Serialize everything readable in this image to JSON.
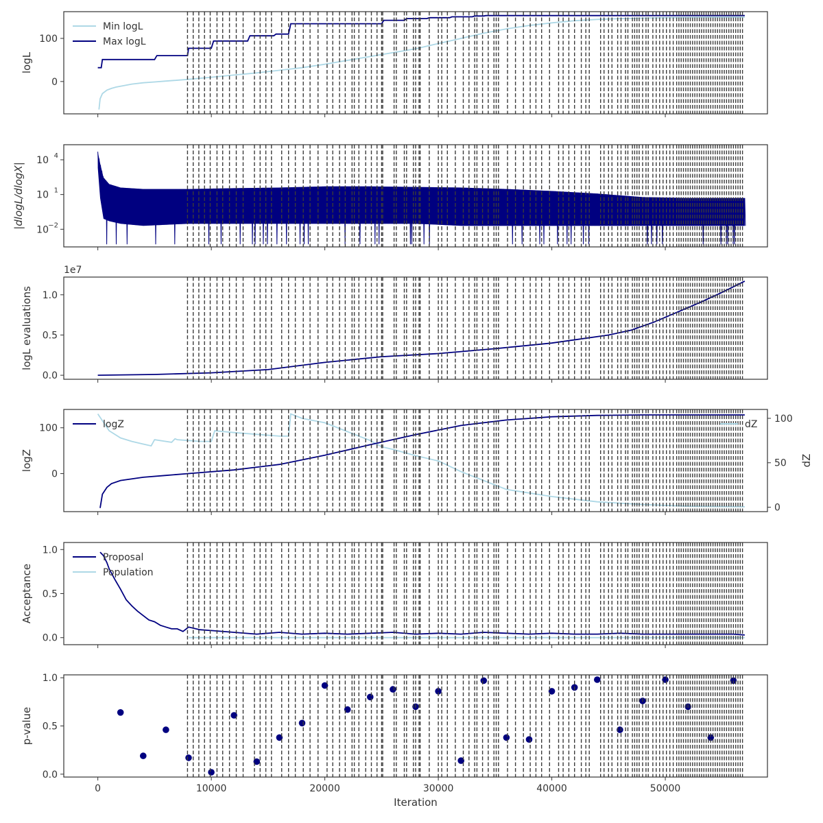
{
  "colors": {
    "dark": "#000080",
    "light": "#add8e6",
    "vline": "#3a3a3a",
    "axis": "#333333"
  },
  "chart_data": [
    {
      "panel": "logL",
      "type": "line",
      "ylabel": "logL",
      "xlim": [
        -3000,
        59000
      ],
      "ylim": [
        -75,
        162
      ],
      "yticks": [
        0,
        100
      ],
      "legend": "top-left",
      "series": [
        {
          "name": "Min logL",
          "color": "light",
          "x": [
            100,
            200,
            400,
            800,
            1200,
            1600,
            2000,
            3000,
            4000,
            5000,
            6000,
            8000,
            10000,
            12000,
            14000,
            16000,
            18000,
            20000,
            22000,
            24000,
            26000,
            28000,
            30000,
            32000,
            34000,
            36000,
            38000,
            40000,
            42000,
            44000,
            46000,
            48000,
            50000,
            52000,
            54000,
            56000,
            57000
          ],
          "y": [
            -65,
            -40,
            -28,
            -20,
            -16,
            -13,
            -11,
            -6,
            -3,
            -1,
            1,
            5,
            10,
            15,
            20,
            26,
            32,
            40,
            49,
            58,
            67,
            76,
            88,
            100,
            112,
            122,
            130,
            136,
            141,
            144,
            146,
            147,
            148,
            148.5,
            149,
            149,
            149
          ]
        },
        {
          "name": "Max logL",
          "color": "dark",
          "step": true,
          "x": [
            0,
            300,
            400,
            5000,
            5200,
            7900,
            8000,
            10000,
            10200,
            13200,
            13400,
            15500,
            15700,
            16800,
            17000,
            25000,
            25200,
            27000,
            27200,
            29000,
            29200,
            31000,
            31200,
            33000,
            33200,
            34000,
            34200,
            57000
          ],
          "y": [
            32,
            32,
            51,
            51,
            60,
            60,
            77,
            77,
            94,
            94,
            106,
            106,
            110,
            110,
            134,
            134,
            142,
            142,
            146,
            146,
            148,
            148,
            150,
            150,
            152,
            152,
            153,
            153
          ]
        }
      ]
    },
    {
      "panel": "dlogL",
      "type": "line",
      "yscale": "log",
      "ylabel": "|dlogL/dlogX|",
      "xlim": [
        -3000,
        59000
      ],
      "ylim": [
        0.0003,
        200000
      ],
      "yticks": [
        0.01,
        10,
        10000
      ],
      "ytick_labels": [
        "10",
        "10",
        "10"
      ],
      "ytick_exponents": [
        "−2",
        "1",
        "4"
      ],
      "envelope": {
        "x": [
          0,
          200,
          500,
          1000,
          2000,
          4000,
          8000,
          12000,
          16000,
          20000,
          24000,
          28000,
          32000,
          36000,
          40000,
          44000,
          48000,
          52000,
          56000,
          57000
        ],
        "upper": [
          50000,
          5000,
          300,
          80,
          40,
          30,
          30,
          35,
          40,
          50,
          50,
          45,
          40,
          30,
          20,
          12,
          6,
          5,
          5,
          5
        ],
        "lower": [
          2000,
          5,
          0.08,
          0.05,
          0.03,
          0.02,
          0.03,
          0.03,
          0.03,
          0.03,
          0.03,
          0.03,
          0.02,
          0.02,
          0.02,
          0.02,
          0.02,
          0.02,
          0.02,
          0.02
        ]
      }
    },
    {
      "panel": "evaluations",
      "type": "line",
      "ylabel": "logL evaluations",
      "offset_label": "1e7",
      "xlim": [
        -3000,
        59000
      ],
      "ylim": [
        -0.05,
        1.22
      ],
      "yticks": [
        0.0,
        0.5,
        1.0
      ],
      "ytick_labels": [
        "0.0",
        "0.5",
        "1.0"
      ],
      "series": [
        {
          "name": "",
          "color": "dark",
          "x": [
            0,
            5000,
            10000,
            15000,
            20000,
            25000,
            30000,
            35000,
            40000,
            45000,
            47000,
            49000,
            51000,
            53000,
            55000,
            57000
          ],
          "y": [
            0.0,
            0.01,
            0.03,
            0.07,
            0.16,
            0.23,
            0.27,
            0.33,
            0.4,
            0.5,
            0.56,
            0.66,
            0.78,
            0.9,
            1.03,
            1.17
          ]
        }
      ]
    },
    {
      "panel": "logZ",
      "type": "line",
      "ylabel": "logZ",
      "y2label": "dZ",
      "xlim": [
        -3000,
        59000
      ],
      "ylim": [
        -83,
        140
      ],
      "yticks": [
        0,
        100
      ],
      "y2lim": [
        -5,
        110
      ],
      "y2ticks": [
        0,
        50,
        100
      ],
      "series": [
        {
          "name": "logZ",
          "color": "dark",
          "axis": "left",
          "x": [
            200,
            400,
            800,
            1200,
            2000,
            4000,
            6000,
            8000,
            12000,
            16000,
            20000,
            24000,
            28000,
            32000,
            36000,
            40000,
            44000,
            48000,
            52000,
            57000
          ],
          "y": [
            -75,
            -45,
            -30,
            -22,
            -15,
            -8,
            -4,
            0,
            8,
            20,
            40,
            63,
            85,
            105,
            117,
            124,
            127,
            128,
            128,
            128
          ]
        },
        {
          "name": "dZ",
          "color": "light",
          "axis": "right",
          "x": [
            0,
            1000,
            2000,
            3000,
            4000,
            4700,
            5000,
            6500,
            6800,
            7000,
            8000,
            9000,
            10000,
            10300,
            12000,
            14000,
            16000,
            16800,
            17000,
            18000,
            20000,
            22000,
            24000,
            25000,
            26000,
            28000,
            30000,
            32000,
            34000,
            36000,
            40000,
            44000,
            48000,
            52000,
            57000
          ],
          "y": [
            105,
            86,
            78,
            74,
            71,
            69,
            76,
            73,
            77,
            76,
            75,
            74,
            74,
            86,
            84,
            82,
            80,
            80,
            105,
            100,
            95,
            85,
            75,
            68,
            65,
            58,
            52,
            40,
            30,
            20,
            12,
            6,
            3,
            1,
            0.5
          ]
        }
      ]
    },
    {
      "panel": "acceptance",
      "type": "line",
      "ylabel": "Acceptance",
      "xlim": [
        -3000,
        59000
      ],
      "ylim": [
        -0.08,
        1.08
      ],
      "yticks": [
        0.0,
        0.5,
        1.0
      ],
      "ytick_labels": [
        "0.0",
        "0.5",
        "1.0"
      ],
      "legend": "top-left",
      "series": [
        {
          "name": "Proposal",
          "color": "dark",
          "x": [
            200,
            500,
            800,
            1000,
            1500,
            2000,
            2500,
            3000,
            3500,
            4000,
            4500,
            5000,
            5500,
            6000,
            6500,
            7000,
            7500,
            8000,
            9000,
            10000,
            12000,
            14000,
            16000,
            18000,
            20000,
            22000,
            24000,
            26000,
            28000,
            30000,
            32000,
            34000,
            36000,
            38000,
            40000,
            42000,
            44000,
            46000,
            48000,
            50000,
            52000,
            54000,
            56000,
            57000
          ],
          "y": [
            0.97,
            0.93,
            0.85,
            0.78,
            0.66,
            0.55,
            0.43,
            0.36,
            0.3,
            0.25,
            0.2,
            0.18,
            0.14,
            0.12,
            0.1,
            0.1,
            0.07,
            0.12,
            0.09,
            0.08,
            0.06,
            0.04,
            0.06,
            0.04,
            0.05,
            0.04,
            0.05,
            0.06,
            0.04,
            0.05,
            0.04,
            0.06,
            0.05,
            0.04,
            0.05,
            0.04,
            0.04,
            0.05,
            0.04,
            0.04,
            0.04,
            0.04,
            0.04,
            0.03
          ]
        },
        {
          "name": "Population",
          "color": "light",
          "x": [
            8000,
            57000
          ],
          "y": [
            0.0,
            0.0
          ]
        }
      ]
    },
    {
      "panel": "pvalue",
      "type": "scatter",
      "ylabel": "p-value",
      "xlabel": "Iteration",
      "xlim": [
        -3000,
        59000
      ],
      "ylim": [
        -0.03,
        1.03
      ],
      "yticks": [
        0.0,
        0.5,
        1.0
      ],
      "ytick_labels": [
        "0.0",
        "0.5",
        "1.0"
      ],
      "xticks": [
        0,
        10000,
        20000,
        30000,
        40000,
        50000
      ],
      "xtick_labels": [
        "0",
        "10000",
        "20000",
        "30000",
        "40000",
        "50000"
      ],
      "x": [
        2000,
        4000,
        6000,
        8000,
        10000,
        12000,
        14000,
        16000,
        18000,
        20000,
        22000,
        24000,
        26000,
        28000,
        30000,
        32000,
        34000,
        36000,
        38000,
        40000,
        42000,
        44000,
        46000,
        48000,
        50000,
        52000,
        54000,
        56000
      ],
      "y": [
        0.64,
        0.19,
        0.46,
        0.17,
        0.02,
        0.61,
        0.13,
        0.38,
        0.53,
        0.92,
        0.67,
        0.8,
        0.88,
        0.7,
        0.86,
        0.14,
        0.97,
        0.38,
        0.36,
        0.86,
        0.9,
        0.98,
        0.46,
        0.76,
        0.98,
        0.7,
        0.38,
        0.97
      ]
    }
  ],
  "restart_lines": [
    7900,
    8400,
    8900,
    9400,
    9900,
    10500,
    11000,
    11600,
    12200,
    12800,
    13800,
    14300,
    14800,
    15300,
    16200,
    16800,
    17400,
    18100,
    18700,
    19400,
    20200,
    20700,
    21300,
    21800,
    22400,
    22600,
    23000,
    23600,
    24100,
    24600,
    25000,
    25100,
    26100,
    26300,
    27000,
    27200,
    27800,
    28000,
    28300,
    28400,
    29200,
    30000,
    30300,
    30800,
    31500,
    32200,
    32700,
    33200,
    33400,
    33900,
    34400,
    34900,
    35100,
    35300,
    36100,
    36800,
    37500,
    38100,
    38600,
    39100,
    39800,
    40600,
    41000,
    41500,
    42000,
    42600,
    43000,
    43300,
    44300,
    44600,
    45000,
    45300,
    45800,
    46100,
    46500,
    46700,
    47100,
    47300,
    47500,
    47700,
    48000,
    48300,
    48500,
    48900,
    49200,
    49500,
    49800,
    50100,
    50400,
    50700,
    51000,
    51200,
    51400,
    51600,
    51800,
    52000,
    52200,
    52400,
    52600,
    52800,
    53000,
    53200,
    53400,
    53600,
    53800,
    54000,
    54200,
    54400,
    54600,
    54800,
    55000,
    55200,
    55400,
    55600,
    55800,
    56000,
    56200,
    56400,
    56600,
    56800
  ]
}
